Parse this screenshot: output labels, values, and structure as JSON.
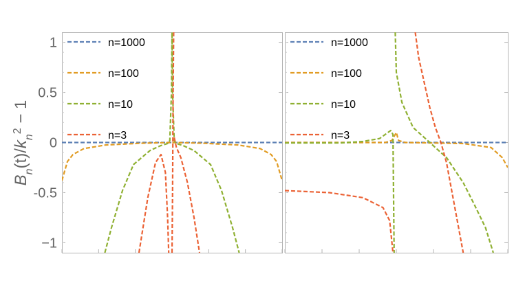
{
  "chart_data": {
    "type": "line",
    "ylabel": "B_n(t)/k_n^2 − 1",
    "ylim": [
      -1.1,
      1.1
    ],
    "yticks": [
      {
        "value": 1,
        "label": "1"
      },
      {
        "value": 0.5,
        "label": "0.5"
      },
      {
        "value": 0,
        "label": "0"
      },
      {
        "value": -0.5,
        "label": "-0.5"
      },
      {
        "value": -1,
        "label": "−1"
      }
    ],
    "legend": [
      "n=1000",
      "n=100",
      "n=10",
      "n=3"
    ],
    "colors": {
      "n=1000": "#5e81b5",
      "n=100": "#e19c24",
      "n=10": "#8fb032",
      "n=3": "#eb6235"
    },
    "panels": [
      {
        "name": "left",
        "xlim": [
          -1,
          1
        ],
        "series": [
          {
            "name": "n=1000",
            "points": [
              [
                -1,
                0
              ],
              [
                1,
                0
              ]
            ]
          },
          {
            "name": "n=100",
            "points": [
              [
                -1,
                -0.38
              ],
              [
                -0.95,
                -0.19
              ],
              [
                -0.9,
                -0.12
              ],
              [
                -0.8,
                -0.06
              ],
              [
                -0.6,
                -0.025
              ],
              [
                -0.3,
                -0.008
              ],
              [
                0,
                0
              ],
              [
                0.3,
                -0.008
              ],
              [
                0.6,
                -0.025
              ],
              [
                0.8,
                -0.06
              ],
              [
                0.9,
                -0.12
              ],
              [
                0.95,
                -0.19
              ],
              [
                1,
                -0.38
              ]
            ]
          },
          {
            "name": "n=10",
            "points": [
              [
                -0.61,
                -1.1
              ],
              [
                -0.55,
                -0.85
              ],
              [
                -0.45,
                -0.48
              ],
              [
                -0.35,
                -0.22
              ],
              [
                -0.2,
                -0.08
              ],
              [
                -0.1,
                -0.03
              ],
              [
                -0.04,
                -0.01
              ],
              [
                -0.02,
                0.02
              ],
              [
                -0.005,
                0.5
              ],
              [
                0,
                1.1
              ],
              [
                0.005,
                0.5
              ],
              [
                0.02,
                0.02
              ],
              [
                0.04,
                -0.01
              ],
              [
                0.1,
                -0.03
              ],
              [
                0.2,
                -0.08
              ],
              [
                0.35,
                -0.22
              ],
              [
                0.45,
                -0.48
              ],
              [
                0.55,
                -0.85
              ],
              [
                0.61,
                -1.1
              ]
            ]
          },
          {
            "name": "n=3",
            "points": [
              [
                -0.3,
                -1.1
              ],
              [
                -0.22,
                -0.55
              ],
              [
                -0.15,
                -0.2
              ],
              [
                -0.1,
                -0.12
              ],
              [
                -0.06,
                -0.3
              ],
              [
                -0.04,
                -0.75
              ],
              [
                -0.03,
                -1.1
              ]
            ]
          },
          {
            "name": "n=3",
            "points": [
              [
                0.0,
                -1.1
              ],
              [
                0.005,
                -0.5
              ],
              [
                0.01,
                0.5
              ],
              [
                0.015,
                1.1
              ]
            ]
          },
          {
            "name": "n=3",
            "points": [
              [
                0.02,
                0.05
              ],
              [
                0.04,
                -0.05
              ],
              [
                0.08,
                -0.15
              ],
              [
                0.14,
                -0.4
              ],
              [
                0.2,
                -0.75
              ],
              [
                0.25,
                -1.1
              ]
            ]
          }
        ]
      },
      {
        "name": "right",
        "xlim": [
          -1,
          1
        ],
        "series": [
          {
            "name": "n=1000",
            "points": [
              [
                -1,
                0
              ],
              [
                1,
                0
              ]
            ]
          },
          {
            "name": "n=100",
            "points": [
              [
                -1,
                0
              ],
              [
                -0.5,
                0
              ],
              [
                -0.1,
                0
              ],
              [
                -0.04,
                0.02
              ],
              [
                0,
                0.1
              ],
              [
                0.02,
                0.02
              ],
              [
                0.08,
                0
              ],
              [
                0.6,
                -0.01
              ],
              [
                0.85,
                -0.05
              ],
              [
                0.95,
                -0.15
              ],
              [
                1,
                -0.25
              ]
            ]
          },
          {
            "name": "n=10",
            "points": [
              [
                -1,
                -0.005
              ],
              [
                -0.5,
                -0.005
              ],
              [
                -0.3,
                0.01
              ],
              [
                -0.15,
                0.04
              ],
              [
                -0.05,
                0.12
              ],
              [
                -0.03,
                0.08
              ],
              [
                -0.02,
                -1.1
              ]
            ]
          },
          {
            "name": "n=10",
            "points": [
              [
                -0.01,
                1.1
              ],
              [
                0,
                0.7
              ],
              [
                0.05,
                0.4
              ],
              [
                0.15,
                0.15
              ],
              [
                0.3,
                0
              ],
              [
                0.45,
                -0.15
              ],
              [
                0.6,
                -0.4
              ],
              [
                0.7,
                -0.62
              ],
              [
                0.8,
                -0.85
              ],
              [
                0.87,
                -1.1
              ]
            ]
          },
          {
            "name": "n=3",
            "points": [
              [
                -1,
                -0.48
              ],
              [
                -0.6,
                -0.5
              ],
              [
                -0.3,
                -0.55
              ],
              [
                -0.12,
                -0.65
              ],
              [
                -0.06,
                -0.78
              ],
              [
                -0.03,
                -1.1
              ]
            ]
          },
          {
            "name": "n=3",
            "points": [
              [
                0.17,
                1.1
              ],
              [
                0.2,
                0.85
              ],
              [
                0.25,
                0.6
              ],
              [
                0.3,
                0.35
              ],
              [
                0.35,
                0.15
              ],
              [
                0.4,
                0
              ],
              [
                0.45,
                -0.2
              ],
              [
                0.5,
                -0.5
              ],
              [
                0.55,
                -0.8
              ],
              [
                0.6,
                -1.1
              ]
            ]
          }
        ]
      }
    ]
  }
}
